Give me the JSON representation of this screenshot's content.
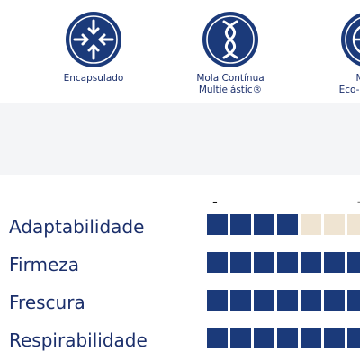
{
  "colors": {
    "brand_navy": "#1b3a7a",
    "filled_block": "#1b3a7a",
    "empty_block": "#efe4d2",
    "text": "#1b2f6b",
    "band": "#f4f5f7"
  },
  "features": [
    {
      "icon": "encapsulated-arrows-icon",
      "lines": [
        "Encapsulado"
      ]
    },
    {
      "icon": "continuous-spring-icon",
      "lines": [
        "Mola Contínua",
        "Multielástic®"
      ]
    },
    {
      "icon": "globe-icon",
      "lines": [
        "M",
        "Eco-Hipo"
      ]
    }
  ],
  "scale": {
    "min_label": "-",
    "max_label": "+"
  },
  "ratings": [
    {
      "label": "Adaptabilidade",
      "filled": 4,
      "total": 7
    },
    {
      "label": "Firmeza",
      "filled": 7,
      "total": 7
    },
    {
      "label": "Frescura",
      "filled": 7,
      "total": 7
    },
    {
      "label": "Respirabilidade",
      "filled": 7,
      "total": 7
    }
  ]
}
